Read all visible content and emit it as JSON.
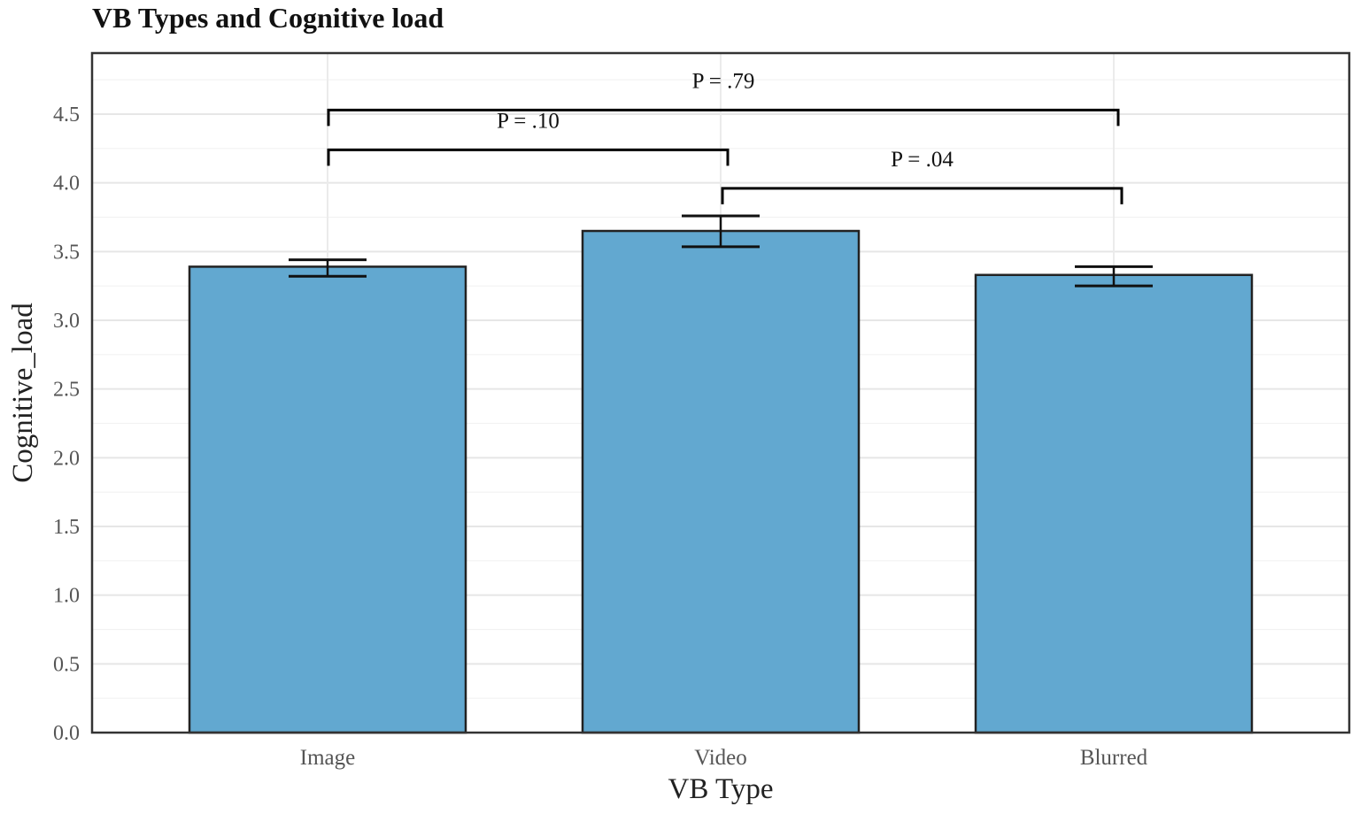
{
  "chart_data": {
    "type": "bar",
    "title": "VB Types and Cognitive load",
    "xlabel": "VB Type",
    "ylabel": "Cognitive_load",
    "ylim": [
      0,
      4.9
    ],
    "yticks": [
      "0.0",
      "0.5",
      "1.0",
      "1.5",
      "2.0",
      "2.5",
      "3.0",
      "3.5",
      "4.0",
      "4.5"
    ],
    "categories": [
      "Image",
      "Video",
      "Blurred"
    ],
    "values": [
      3.39,
      3.65,
      3.33
    ],
    "error_low": [
      3.32,
      3.535,
      3.25
    ],
    "error_high": [
      3.44,
      3.76,
      3.39
    ],
    "grid": true,
    "bar_color": "#62a8d0",
    "annotations": [
      {
        "label": "P = .79",
        "from": "Image",
        "to": "Blurred",
        "y": 4.53
      },
      {
        "label": "P = .10",
        "from": "Image",
        "to": "Video",
        "y": 4.24
      },
      {
        "label": "P = .04",
        "from": "Video",
        "to": "Blurred",
        "y": 3.96
      }
    ]
  }
}
